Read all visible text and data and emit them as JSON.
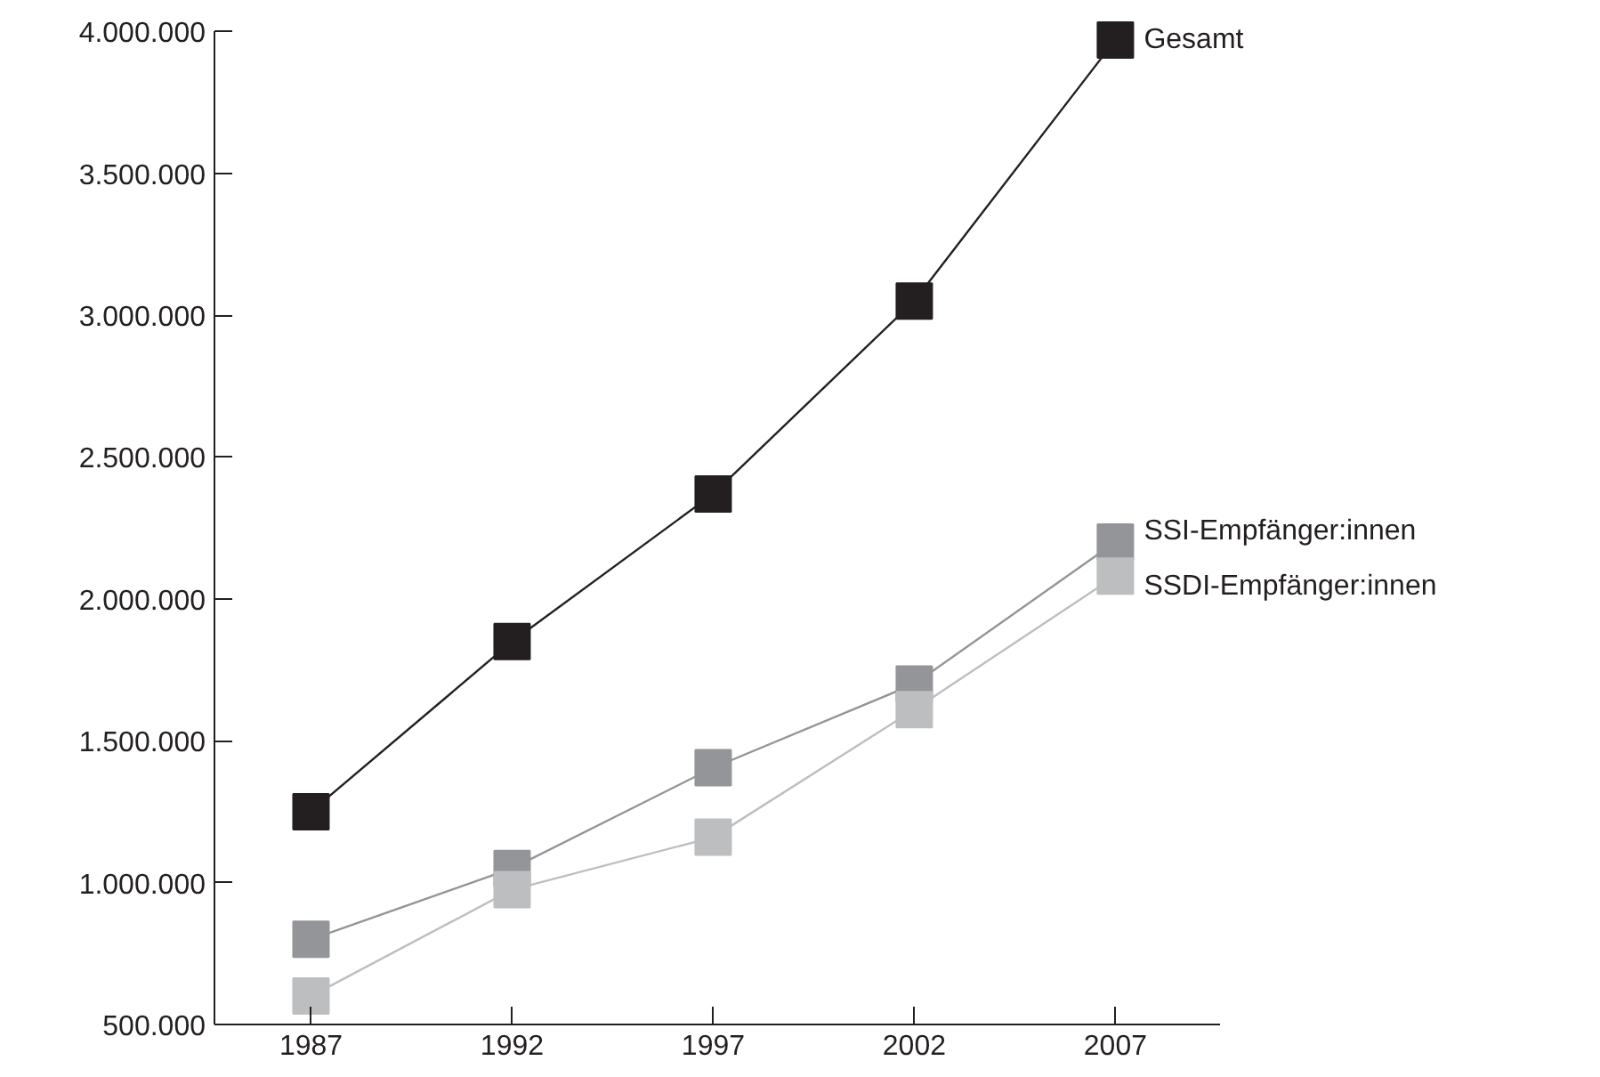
{
  "chart_data": {
    "type": "line",
    "x": [
      1987,
      1992,
      1997,
      2002,
      2007
    ],
    "series": [
      {
        "name": "Gesamt",
        "color": "#231f20",
        "values": [
          1250000,
          1850000,
          2370000,
          3050000,
          3970000
        ]
      },
      {
        "name": "SSI-Empfänger:innen",
        "color": "#939598",
        "values": [
          800000,
          1050000,
          1405000,
          1700000,
          2200000
        ]
      },
      {
        "name": "SSDI-Empfänger:innen",
        "color": "#bcbec0",
        "values": [
          600000,
          975000,
          1160000,
          1610000,
          2080000
        ]
      }
    ],
    "xlim": [
      1984.6,
      2009.6
    ],
    "xticks": [
      1987,
      1992,
      1997,
      2002,
      2007
    ],
    "ylim": [
      500000,
      4000000
    ],
    "yticks": [
      {
        "value": 500000,
        "label": "500.000"
      },
      {
        "value": 1000000,
        "label": "1.000.000"
      },
      {
        "value": 1500000,
        "label": "1.500.000"
      },
      {
        "value": 2000000,
        "label": "2.000.000"
      },
      {
        "value": 2500000,
        "label": "2.500.000"
      },
      {
        "value": 3000000,
        "label": "3.000.000"
      },
      {
        "value": 3500000,
        "label": "3.500.000"
      },
      {
        "value": 4000000,
        "label": "4.000.000"
      }
    ],
    "grid": false,
    "legend": false,
    "marker": "square",
    "line_style": "solid"
  }
}
